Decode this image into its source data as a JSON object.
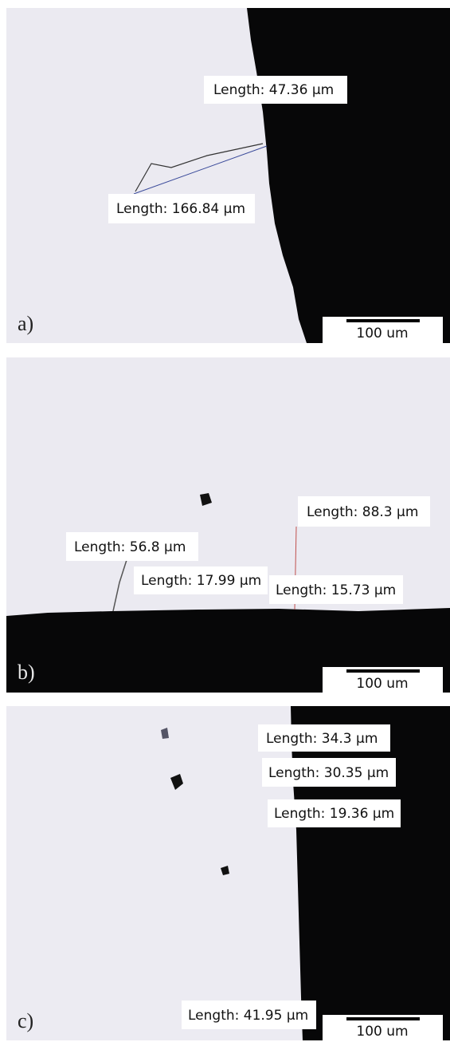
{
  "panels": [
    {
      "label": "a)",
      "scale_bar": "100 um",
      "measurements": [
        "Length: 47.36 µm",
        "Length: 166.84 µm"
      ]
    },
    {
      "label": "b)",
      "scale_bar": "100 um",
      "measurements": [
        "Length: 88.3 µm",
        "Length: 56.8 µm",
        "Length: 17.99 µm",
        "Length: 15.73 µm"
      ]
    },
    {
      "label": "c)",
      "scale_bar": "100 um",
      "measurements": [
        "Length: 34.3 µm",
        "Length: 30.35 µm",
        "Length: 19.36 µm",
        "Length: 41.95 µm"
      ]
    }
  ]
}
